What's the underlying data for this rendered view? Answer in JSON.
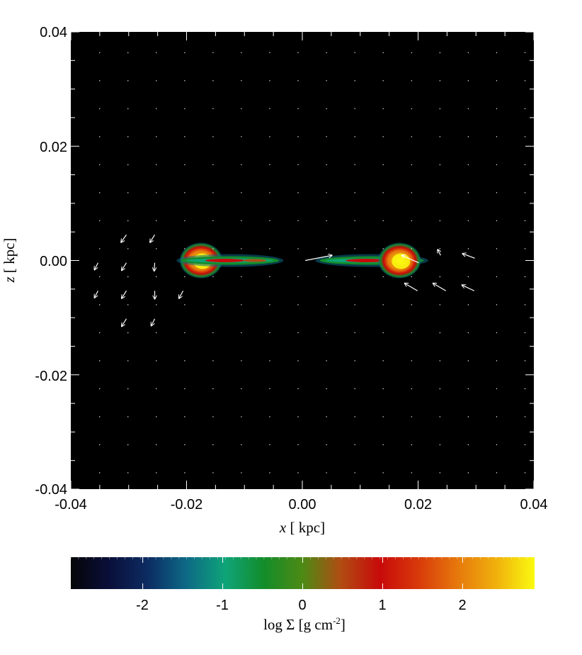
{
  "chart_data": {
    "type": "heatmap",
    "title": "",
    "xlabel": {
      "var": "x",
      "unit": " [ kpc]"
    },
    "ylabel": {
      "var": "z",
      "unit": " [ kpc]"
    },
    "xlim": [
      -0.04,
      0.04
    ],
    "ylim": [
      -0.04,
      0.04
    ],
    "x_ticks": [
      "-0.04",
      "-0.02",
      "0.00",
      "0.02",
      "0.04"
    ],
    "y_ticks": [
      "0.04",
      "0.02",
      "0.00",
      "-0.02",
      "-0.04"
    ],
    "background_color": "#000000",
    "colorbar": {
      "label": {
        "prefix": "log ",
        "sym": "Σ",
        "mid": " [g cm",
        "sup": "-2",
        "end": "]"
      },
      "range": [
        -2.9,
        2.9
      ],
      "ticks": [
        "-2",
        "-1",
        "0",
        "1",
        "2"
      ],
      "tick_values": [
        -2,
        -1,
        0,
        1,
        2
      ],
      "colors": [
        "#050508",
        "#0a0f3a",
        "#0c2c62",
        "#0d6a86",
        "#0fa478",
        "#138c2a",
        "#4d8a14",
        "#b24b12",
        "#c80a0a",
        "#d83a0a",
        "#e6780c",
        "#f0b00c",
        "#fafa10"
      ]
    },
    "structures": [
      {
        "name": "left-clump",
        "x": -0.0175,
        "z": 0.0,
        "peak_log_sigma": 2.5
      },
      {
        "name": "left-filament",
        "x_range": [
          -0.021,
          -0.004
        ],
        "z": 0.0,
        "peak_log_sigma": 0.5
      },
      {
        "name": "right-filament",
        "x_range": [
          0.003,
          0.021
        ],
        "z": 0.0,
        "peak_log_sigma": 0.5
      },
      {
        "name": "right-clump",
        "x": 0.0168,
        "z": 0.0,
        "peak_log_sigma": 2.5
      }
    ],
    "velocity_grid_spacing": 0.0049,
    "velocity_arrows": [
      {
        "x": -0.0304,
        "z": 0.0045,
        "dx": -0.0009,
        "dz": -0.0013
      },
      {
        "x": -0.0255,
        "z": 0.0045,
        "dx": -0.0008,
        "dz": -0.0013
      },
      {
        "x": -0.0353,
        "z": -0.0004,
        "dx": -0.0006,
        "dz": -0.0012
      },
      {
        "x": -0.0304,
        "z": -0.0004,
        "dx": -0.0008,
        "dz": -0.0013
      },
      {
        "x": -0.0255,
        "z": -0.0004,
        "dx": -0.0001,
        "dz": -0.0014
      },
      {
        "x": -0.0353,
        "z": -0.0053,
        "dx": -0.0006,
        "dz": -0.0012
      },
      {
        "x": -0.0304,
        "z": -0.0053,
        "dx": -0.0008,
        "dz": -0.0013
      },
      {
        "x": -0.0255,
        "z": -0.0053,
        "dx": 0.0,
        "dz": -0.0014
      },
      {
        "x": -0.0206,
        "z": -0.0053,
        "dx": -0.0007,
        "dz": -0.0013
      },
      {
        "x": -0.0304,
        "z": -0.0102,
        "dx": -0.0008,
        "dz": -0.0013
      },
      {
        "x": -0.0255,
        "z": -0.0102,
        "dx": -0.0006,
        "dz": -0.0012
      },
      {
        "x": 0.0005,
        "z": 0.0,
        "dx": 0.0046,
        "dz": 0.0009
      },
      {
        "x": 0.0239,
        "z": 0.0009,
        "dx": -0.0005,
        "dz": 0.001
      },
      {
        "x": 0.0298,
        "z": 0.0004,
        "dx": -0.0021,
        "dz": 0.0008
      },
      {
        "x": 0.0201,
        "z": -0.0004,
        "dx": -0.0029,
        "dz": 0.0013
      },
      {
        "x": 0.0199,
        "z": -0.0053,
        "dx": -0.0022,
        "dz": 0.0013
      },
      {
        "x": 0.0248,
        "z": -0.0053,
        "dx": -0.0022,
        "dz": 0.0013
      },
      {
        "x": 0.0297,
        "z": -0.0053,
        "dx": -0.0021,
        "dz": 0.001
      }
    ]
  }
}
